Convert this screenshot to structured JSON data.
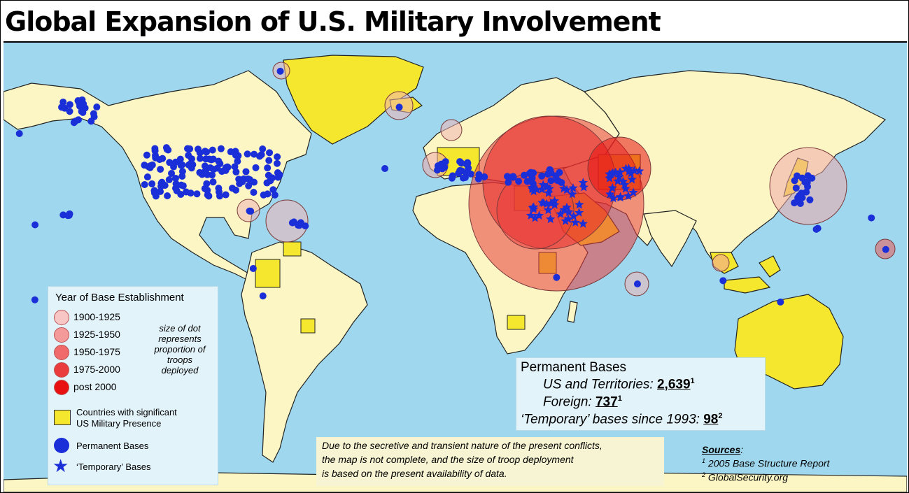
{
  "title": "Global Expansion of U.S. Military Involvement",
  "legend": {
    "heading": "Year of Base Establishment",
    "eras": [
      {
        "label": "1900-1925",
        "color": "#f9c6c6"
      },
      {
        "label": "1925-1950",
        "color": "#f59a9a"
      },
      {
        "label": "1950-1975",
        "color": "#f06a6a"
      },
      {
        "label": "1975-2000",
        "color": "#ea3c3c"
      },
      {
        "label": "post 2000",
        "color": "#e81010"
      }
    ],
    "size_note": "size of dot represents proportion of troops deployed",
    "countries_label_1": "Countries with significant",
    "countries_label_2": "US Military Presence",
    "permanent_label": "Permanent Bases",
    "temporary_label": "‘Temporary’ Bases"
  },
  "stats": {
    "heading": "Permanent Bases",
    "us_label": "US and Territories:",
    "us_value": "2,639",
    "us_ref": "1",
    "foreign_label": "Foreign:",
    "foreign_value": "737",
    "foreign_ref": "1",
    "temp_label": "‘Temporary’ bases since 1993:",
    "temp_value": "98",
    "temp_ref": "2"
  },
  "disclaimer": {
    "line1": "Due to the secretive and transient nature of the present conflicts,",
    "line2": "the map is not complete, and the size of troop deployment",
    "line3": "is based on the present availability of data."
  },
  "sources": {
    "heading": "Sources",
    "ref1": "1",
    "item1": "2005 Base Structure Report",
    "ref2": "2",
    "item2": "GlobalSecurity.org"
  },
  "colors": {
    "ocean": "#9fd8ee",
    "land": "#fbf6c4",
    "presence": "#f5e62e",
    "base": "#1b2fd8",
    "legend_bg": "#e3f3fa"
  }
}
